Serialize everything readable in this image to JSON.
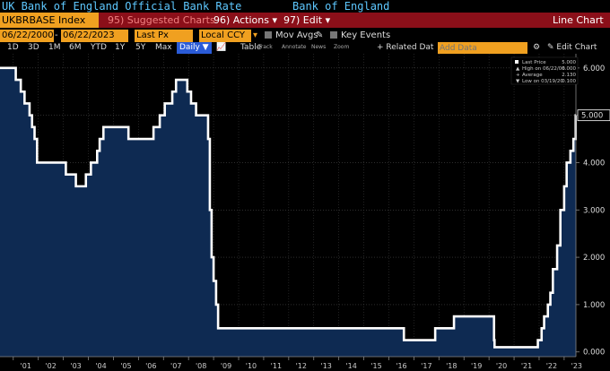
{
  "title_bar": {
    "left": "UK Bank of England Official Bank Rate",
    "right": "Bank of England"
  },
  "menu_bar": {
    "ticker": "UKBRBASE Index",
    "suggested": "95) Suggested Charts",
    "actions": "96) Actions ▾",
    "edit": "97) Edit ▾",
    "right_title": "Line Chart"
  },
  "options_bar": {
    "start_date": "06/22/2000",
    "end_date": "06/22/2023",
    "price_field": "Last Px",
    "currency": "Local CCY",
    "mov_avgs": "Mov Avgs",
    "key_events": "Key Events"
  },
  "range_bar": {
    "ranges": [
      "1D",
      "3D",
      "1M",
      "6M",
      "YTD",
      "1Y",
      "5Y",
      "Max"
    ],
    "frequency": "Daily ▼",
    "table": "Table",
    "tools": [
      "Track",
      "Annotate",
      "News",
      "Zoom"
    ],
    "related": "+ Related Dat",
    "add_data_placeholder": "Add Data",
    "edit_chart": "Edit Chart"
  },
  "legend": {
    "last_price_label": "Last Price",
    "last_price_value": "5.000",
    "high_label": "High on 06/22/00",
    "high_value": "6.000",
    "average_label": "Average",
    "average_value": "2.130",
    "low_label": "Low on 03/19/20",
    "low_value": "0.100"
  },
  "colors": {
    "line": "#ffffff",
    "fill": "#0e2a52",
    "menu_bar": "#8b0f19",
    "orange": "#f0a020",
    "title_blue": "#5ec8ff"
  },
  "chart_data": {
    "type": "area",
    "x_ticks": [
      "'01",
      "'02",
      "'03",
      "'04",
      "'05",
      "'06",
      "'07",
      "'08",
      "'09",
      "'10",
      "'11",
      "'12",
      "'13",
      "'14",
      "'15",
      "'16",
      "'17",
      "'18",
      "'19",
      "'20",
      "'21",
      "'22",
      "'23"
    ],
    "y_ticks": [
      "6.000",
      "5.000",
      "4.000",
      "3.000",
      "2.000",
      "1.000",
      "0.000"
    ],
    "ylim": [
      -0.1,
      6.3
    ],
    "xlim": [
      2000.47,
      2023.47
    ],
    "last_value_label": "5.000",
    "series": [
      {
        "values": [
          [
            2000.47,
            6.0
          ],
          [
            2001.1,
            5.75
          ],
          [
            2001.3,
            5.5
          ],
          [
            2001.45,
            5.25
          ],
          [
            2001.65,
            5.0
          ],
          [
            2001.75,
            4.75
          ],
          [
            2001.85,
            4.5
          ],
          [
            2001.95,
            4.0
          ],
          [
            2003.1,
            3.75
          ],
          [
            2003.5,
            3.5
          ],
          [
            2003.9,
            3.75
          ],
          [
            2004.1,
            4.0
          ],
          [
            2004.35,
            4.25
          ],
          [
            2004.45,
            4.5
          ],
          [
            2004.6,
            4.75
          ],
          [
            2005.6,
            4.5
          ],
          [
            2006.6,
            4.75
          ],
          [
            2006.85,
            5.0
          ],
          [
            2007.05,
            5.25
          ],
          [
            2007.35,
            5.5
          ],
          [
            2007.5,
            5.75
          ],
          [
            2007.95,
            5.5
          ],
          [
            2008.1,
            5.25
          ],
          [
            2008.3,
            5.0
          ],
          [
            2008.78,
            4.5
          ],
          [
            2008.85,
            3.0
          ],
          [
            2008.92,
            2.0
          ],
          [
            2009.0,
            1.5
          ],
          [
            2009.1,
            1.0
          ],
          [
            2009.18,
            0.5
          ],
          [
            2016.6,
            0.25
          ],
          [
            2017.85,
            0.5
          ],
          [
            2018.6,
            0.75
          ],
          [
            2020.2,
            0.25
          ],
          [
            2020.22,
            0.1
          ],
          [
            2021.95,
            0.25
          ],
          [
            2022.1,
            0.5
          ],
          [
            2022.2,
            0.75
          ],
          [
            2022.35,
            1.0
          ],
          [
            2022.45,
            1.25
          ],
          [
            2022.55,
            1.75
          ],
          [
            2022.72,
            2.25
          ],
          [
            2022.85,
            3.0
          ],
          [
            2023.0,
            3.5
          ],
          [
            2023.1,
            4.0
          ],
          [
            2023.25,
            4.25
          ],
          [
            2023.37,
            4.5
          ],
          [
            2023.46,
            5.0
          ],
          [
            2023.47,
            5.0
          ]
        ]
      }
    ]
  }
}
